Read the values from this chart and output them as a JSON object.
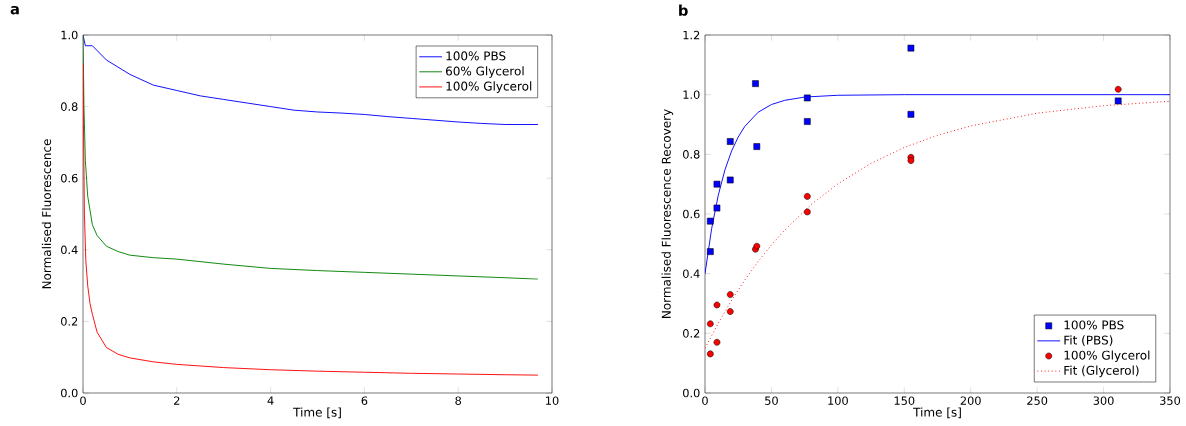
{
  "chart_data": [
    {
      "type": "line",
      "title": "a",
      "xlabel": "Time [s]",
      "ylabel": "Normalised Fluorescence",
      "xlim": [
        0,
        10
      ],
      "ylim": [
        0,
        1
      ],
      "xticks": [
        0,
        2,
        4,
        6,
        8,
        10
      ],
      "yticks": [
        {
          "value": 0,
          "label": "0.0"
        },
        {
          "value": 0.2,
          "label": "0.2"
        },
        {
          "value": 0.4,
          "label": "0.4"
        },
        {
          "value": 0.6,
          "label": "0.6"
        },
        {
          "value": 0.8,
          "label": "0.8"
        },
        {
          "value": 1,
          "label": "1.0"
        }
      ],
      "legend": "top right",
      "line_style": "solid",
      "marker": "none",
      "series": [
        {
          "name": "100% PBS",
          "color": "#0000ff",
          "x": [
            0,
            0.05,
            0.2,
            0.5,
            1,
            1.5,
            2,
            2.5,
            3,
            3.5,
            4,
            4.5,
            5,
            5.5,
            6,
            6.5,
            7,
            7.5,
            8,
            8.5,
            9,
            9.7
          ],
          "values": [
            1.0,
            0.97,
            0.97,
            0.93,
            0.89,
            0.86,
            0.845,
            0.83,
            0.82,
            0.81,
            0.8,
            0.79,
            0.785,
            0.782,
            0.778,
            0.772,
            0.767,
            0.762,
            0.757,
            0.753,
            0.75,
            0.75
          ]
        },
        {
          "name": "60% Glycerol",
          "color": "#008000",
          "x": [
            0,
            0.02,
            0.05,
            0.1,
            0.2,
            0.3,
            0.5,
            0.75,
            1,
            1.5,
            2,
            3,
            4,
            5,
            6,
            7,
            8,
            9,
            9.7
          ],
          "values": [
            1.0,
            0.8,
            0.65,
            0.55,
            0.47,
            0.44,
            0.41,
            0.395,
            0.385,
            0.378,
            0.374,
            0.36,
            0.348,
            0.342,
            0.337,
            0.332,
            0.327,
            0.322,
            0.318
          ]
        },
        {
          "name": "100% Glycerol",
          "color": "#ff0000",
          "x": [
            0.005,
            0.01,
            0.03,
            0.06,
            0.1,
            0.15,
            0.2,
            0.3,
            0.5,
            0.75,
            1,
            1.5,
            2,
            3,
            4,
            5,
            6,
            7,
            8,
            9,
            9.7
          ],
          "values": [
            0.92,
            0.75,
            0.5,
            0.37,
            0.3,
            0.25,
            0.22,
            0.17,
            0.127,
            0.108,
            0.098,
            0.087,
            0.08,
            0.071,
            0.065,
            0.061,
            0.058,
            0.055,
            0.053,
            0.051,
            0.05
          ]
        }
      ]
    },
    {
      "type": "scatter",
      "title": "b",
      "xlabel": "Time [s]",
      "ylabel": "Normalised Fluorescence Recovery",
      "xlim": [
        0,
        350
      ],
      "ylim": [
        0,
        1.2
      ],
      "xticks": [
        0,
        50,
        100,
        150,
        200,
        250,
        300,
        350
      ],
      "yticks": [
        {
          "value": 0,
          "label": "0.0"
        },
        {
          "value": 0.2,
          "label": "0.2"
        },
        {
          "value": 0.4,
          "label": "0.4"
        },
        {
          "value": 0.6,
          "label": "0.6"
        },
        {
          "value": 0.8,
          "label": "0.8"
        },
        {
          "value": 1,
          "label": "1.0"
        },
        {
          "value": 1.2,
          "label": "1.2"
        }
      ],
      "legend": "bottom right",
      "series": [
        {
          "name": "100% PBS",
          "type": "scatter",
          "marker": "square",
          "color": "#0000ff",
          "x": [
            4,
            4,
            9,
            9,
            19,
            19,
            38,
            39,
            77,
            77,
            155,
            155,
            311
          ],
          "values": [
            0.474,
            0.576,
            0.62,
            0.7,
            0.714,
            0.843,
            1.037,
            0.826,
            0.989,
            0.91,
            1.156,
            0.934,
            0.979
          ]
        },
        {
          "name": "Fit (PBS)",
          "type": "line",
          "line_style": "solid",
          "color": "#0000ff",
          "x": [
            0,
            5,
            10,
            15,
            20,
            25,
            30,
            40,
            50,
            60,
            75,
            100,
            150,
            200,
            250,
            300,
            350
          ],
          "values": [
            0.4,
            0.551,
            0.663,
            0.748,
            0.811,
            0.858,
            0.894,
            0.941,
            0.967,
            0.981,
            0.992,
            0.998,
            1.0,
            1.0,
            1.0,
            1.0,
            1.0
          ]
        },
        {
          "name": "100% Glycerol",
          "type": "scatter",
          "marker": "circle",
          "color": "#ff0000",
          "x": [
            4,
            4,
            9,
            9,
            19,
            19,
            38,
            39,
            77,
            77,
            155,
            155,
            311
          ],
          "values": [
            0.131,
            0.232,
            0.17,
            0.295,
            0.273,
            0.33,
            0.482,
            0.492,
            0.659,
            0.607,
            0.79,
            0.779,
            1.018
          ]
        },
        {
          "name": "Fit (Glycerol)",
          "type": "line",
          "line_style": "dotted",
          "color": "#ff0000",
          "x": [
            0,
            10,
            20,
            30,
            40,
            50,
            60,
            80,
            100,
            125,
            150,
            175,
            200,
            250,
            300,
            350
          ],
          "values": [
            0.15,
            0.234,
            0.311,
            0.379,
            0.441,
            0.496,
            0.546,
            0.632,
            0.701,
            0.77,
            0.823,
            0.864,
            0.895,
            0.938,
            0.963,
            0.978
          ]
        }
      ]
    }
  ]
}
